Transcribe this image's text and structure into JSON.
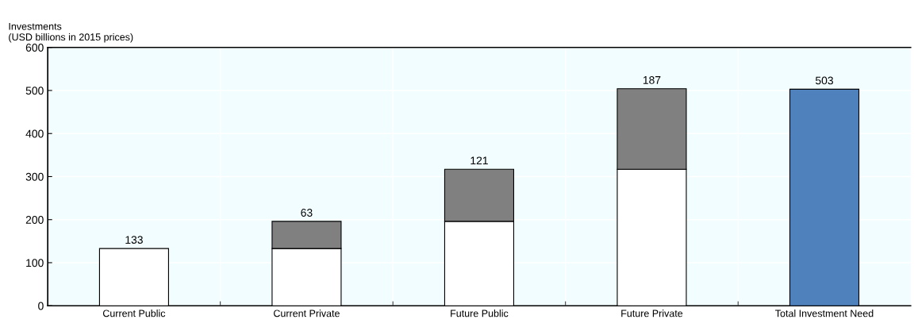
{
  "chart_data": {
    "type": "bar",
    "stacked": true,
    "ylabel": "Investments\n(USD billions in 2015 prices)",
    "categories": [
      "Current Public",
      "Current Private",
      "Future Public",
      "Future Private",
      "Total Investment Need"
    ],
    "series": [
      {
        "color": "#ffffff",
        "values": [
          133,
          133,
          196,
          317,
          null
        ],
        "value_labels": [
          "133",
          null,
          null,
          null,
          null
        ]
      },
      {
        "color": "#808080",
        "values": [
          null,
          63,
          121,
          187,
          null
        ],
        "value_labels": [
          null,
          "63",
          "121",
          "187",
          null
        ]
      },
      {
        "color": "#4f81bd",
        "values": [
          null,
          null,
          null,
          null,
          503
        ],
        "value_labels": [
          null,
          null,
          null,
          null,
          "503"
        ]
      }
    ],
    "ylim": [
      0,
      600
    ],
    "yticks": [
      0,
      100,
      200,
      300,
      400,
      500,
      600
    ],
    "grid": true
  }
}
